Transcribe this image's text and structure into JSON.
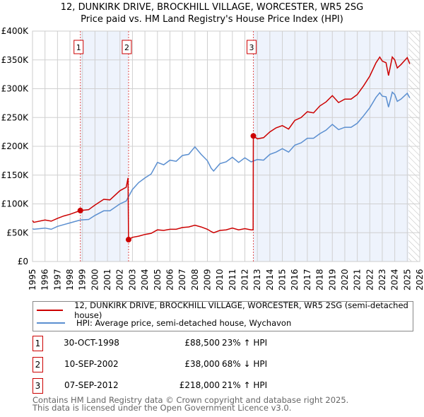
{
  "chart_data": {
    "type": "line",
    "title": "12, DUNKIRK DRIVE, BROCKHILL VILLAGE, WORCESTER, WR5 2SG",
    "subtitle": "Price paid vs. HM Land Registry's House Price Index (HPI)",
    "xlim": [
      1995,
      2026
    ],
    "ylim": [
      0,
      400000
    ],
    "xticks": [
      "1995",
      "1996",
      "1997",
      "1998",
      "1999",
      "2000",
      "2001",
      "2002",
      "2003",
      "2004",
      "2005",
      "2006",
      "2007",
      "2008",
      "2009",
      "2010",
      "2011",
      "2012",
      "2013",
      "2014",
      "2015",
      "2016",
      "2017",
      "2018",
      "2019",
      "2020",
      "2021",
      "2022",
      "2023",
      "2024",
      "2025",
      "2026"
    ],
    "yticks": [
      {
        "v": 0,
        "l": "£0"
      },
      {
        "v": 50000,
        "l": "£50K"
      },
      {
        "v": 100000,
        "l": "£100K"
      },
      {
        "v": 150000,
        "l": "£150K"
      },
      {
        "v": 200000,
        "l": "£200K"
      },
      {
        "v": 250000,
        "l": "£250K"
      },
      {
        "v": 300000,
        "l": "£300K"
      },
      {
        "v": 350000,
        "l": "£350K"
      },
      {
        "v": 400000,
        "l": "£400K"
      }
    ],
    "grid": true,
    "shaded_periods": [
      [
        1998.83,
        2002.69
      ],
      [
        2012.68,
        2025.1
      ]
    ],
    "forecast_hatch_from": 2025.1,
    "series": [
      {
        "name": "12, DUNKIRK DRIVE, BROCKHILL VILLAGE, WORCESTER, WR5 2SG (semi-detached house)",
        "color": "#cc0000",
        "x": [
          1995,
          1995.1,
          1996,
          1996.5,
          1997,
          1997.5,
          1998,
          1998.83,
          1999.5,
          2000,
          2000.7,
          2001.2,
          2002,
          2002.5,
          2002.65,
          2002.69,
          2003,
          2003.5,
          2004,
          2004.5,
          2005,
          2005.5,
          2006,
          2006.5,
          2007,
          2007.5,
          2008,
          2008.5,
          2009,
          2009.3,
          2009.5,
          2010,
          2010.5,
          2011,
          2011.5,
          2012,
          2012.5,
          2012.66,
          2012.68,
          2013,
          2013.5,
          2014,
          2014.5,
          2015,
          2015.5,
          2016,
          2016.5,
          2017,
          2017.5,
          2018,
          2018.5,
          2019,
          2019.5,
          2020,
          2020.5,
          2021,
          2021.5,
          2022,
          2022.5,
          2022.8,
          2023,
          2023.3,
          2023.5,
          2023.8,
          2024,
          2024.2,
          2024.5,
          2025,
          2025.2
        ],
        "y": [
          71000,
          68000,
          72000,
          70000,
          75000,
          79000,
          82000,
          88500,
          90000,
          98000,
          108000,
          107000,
          123000,
          129000,
          145000,
          38000,
          42000,
          44000,
          47000,
          49000,
          55000,
          54000,
          56000,
          56000,
          59000,
          60000,
          63000,
          60000,
          56000,
          52000,
          50000,
          54000,
          55000,
          58000,
          55000,
          57000,
          55000,
          55000,
          218000,
          213000,
          215000,
          225000,
          232000,
          236000,
          230000,
          245000,
          250000,
          260000,
          258000,
          270000,
          277000,
          288000,
          276000,
          282000,
          282000,
          290000,
          305000,
          322000,
          345000,
          355000,
          348000,
          345000,
          323000,
          355000,
          350000,
          336000,
          342000,
          354000,
          343000
        ]
      },
      {
        "name": "HPI: Average price, semi-detached house, Wychavon",
        "color": "#5b8fd0",
        "x": [
          1995,
          1995.1,
          1996,
          1996.5,
          1997,
          1997.5,
          1998,
          1998.83,
          1999.5,
          2000,
          2000.7,
          2001.2,
          2002,
          2002.5,
          2003,
          2003.5,
          2004,
          2004.5,
          2005,
          2005.5,
          2006,
          2006.5,
          2007,
          2007.5,
          2008,
          2008.5,
          2009,
          2009.3,
          2009.5,
          2010,
          2010.5,
          2011,
          2011.5,
          2012,
          2012.5,
          2013,
          2013.5,
          2014,
          2014.5,
          2015,
          2015.5,
          2016,
          2016.5,
          2017,
          2017.5,
          2018,
          2018.5,
          2019,
          2019.5,
          2020,
          2020.5,
          2021,
          2021.5,
          2022,
          2022.5,
          2022.8,
          2023,
          2023.3,
          2023.5,
          2023.8,
          2024,
          2024.2,
          2024.5,
          2025,
          2025.2
        ],
        "y": [
          57000,
          56000,
          58000,
          56000,
          61000,
          64000,
          67000,
          72000,
          73000,
          80000,
          88000,
          88000,
          100000,
          105000,
          125000,
          137000,
          145000,
          152000,
          172000,
          168000,
          176000,
          174000,
          184000,
          186000,
          199000,
          186000,
          175000,
          162000,
          157000,
          170000,
          173000,
          181000,
          172000,
          180000,
          173000,
          177000,
          176000,
          186000,
          190000,
          196000,
          190000,
          202000,
          206000,
          214000,
          214000,
          222000,
          228000,
          238000,
          229000,
          233000,
          233000,
          240000,
          253000,
          267000,
          285000,
          293000,
          287000,
          286000,
          268000,
          294000,
          290000,
          278000,
          282000,
          292000,
          284000
        ]
      }
    ],
    "sales": [
      {
        "n": "1",
        "x": 1998.83,
        "y": 88500
      },
      {
        "n": "2",
        "x": 2002.69,
        "y": 38000
      },
      {
        "n": "3",
        "x": 2012.68,
        "y": 218000
      }
    ]
  },
  "legend": {
    "property": "12, DUNKIRK DRIVE, BROCKHILL VILLAGE, WORCESTER, WR5 2SG (semi-detached house)",
    "hpi": "HPI: Average price, semi-detached house, Wychavon"
  },
  "transactions": [
    {
      "n": "1",
      "date": "30-OCT-1998",
      "price": "£88,500",
      "hpi": "23% ↑ HPI"
    },
    {
      "n": "2",
      "date": "10-SEP-2002",
      "price": "£38,000",
      "hpi": "68% ↓ HPI"
    },
    {
      "n": "3",
      "date": "07-SEP-2012",
      "price": "£218,000",
      "hpi": "21% ↑ HPI"
    }
  ],
  "footer": {
    "line1": "Contains HM Land Registry data © Crown copyright and database right 2025.",
    "line2": "This data is licensed under the Open Government Licence v3.0."
  }
}
